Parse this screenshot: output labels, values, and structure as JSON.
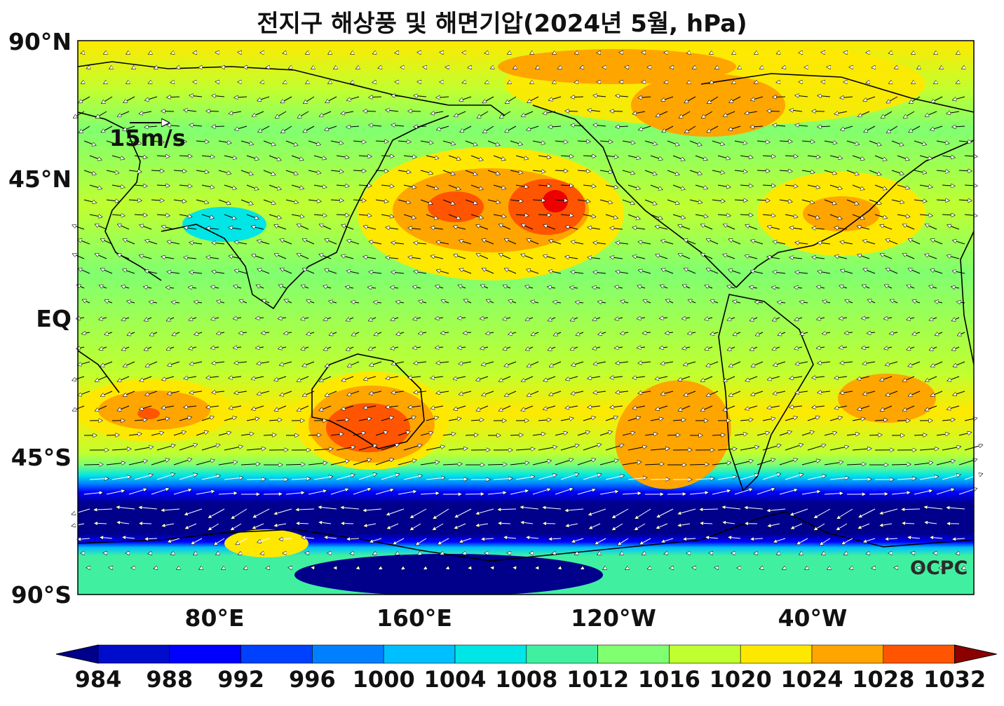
{
  "title": "전지구 해상풍 및 해면기압(2024년 5월, hPa)",
  "y_axis": {
    "labels": [
      "90°N",
      "45°N",
      "EQ",
      "45°S",
      "90°S"
    ]
  },
  "x_axis": {
    "labels": [
      "80°E",
      "160°E",
      "120°W",
      "40°W"
    ]
  },
  "wind_scale": {
    "label": "15m/s",
    "speed_ms": 15
  },
  "watermark": "OCPC",
  "colorbar": {
    "ticks": [
      "984",
      "988",
      "992",
      "996",
      "1000",
      "1004",
      "1008",
      "1012",
      "1016",
      "1020",
      "1024",
      "1028",
      "1032"
    ],
    "colors": [
      "#00008b",
      "#000ccc",
      "#0000ff",
      "#0040ff",
      "#0080ff",
      "#00bfff",
      "#00e5e5",
      "#40f0a0",
      "#80ff70",
      "#c0ff30",
      "#ffe800",
      "#ffa500",
      "#ff5500",
      "#ee0000",
      "#8b0000"
    ]
  }
}
